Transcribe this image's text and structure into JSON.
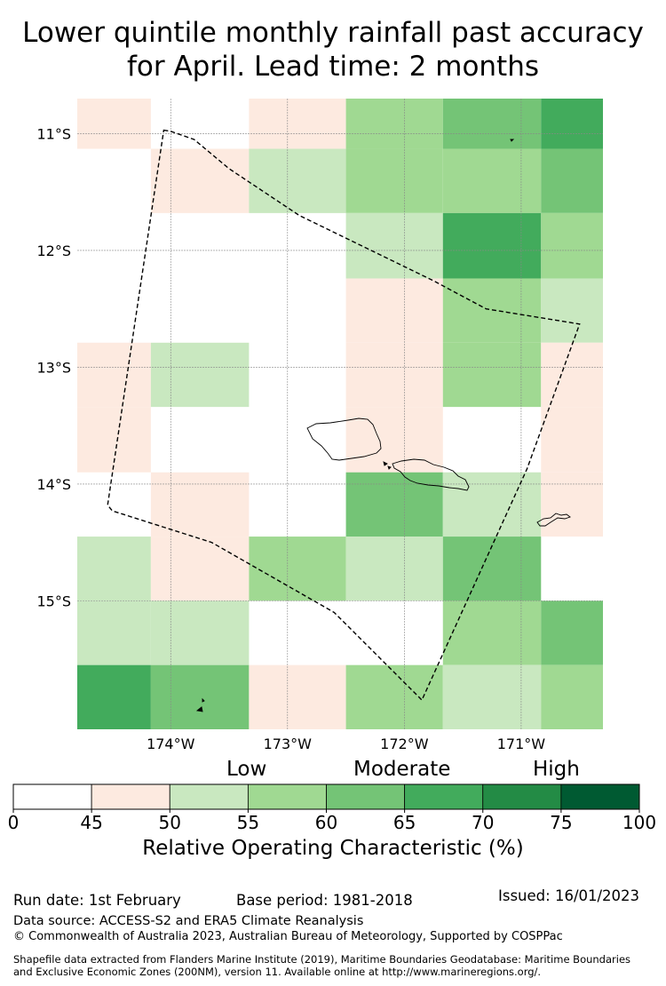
{
  "title": {
    "line1": "Lower quintile monthly rainfall past accuracy",
    "line2": "for April. Lead time: 2 months"
  },
  "map": {
    "lat_labels": [
      "11°S",
      "12°S",
      "13°S",
      "14°S",
      "15°S"
    ],
    "lon_labels": [
      "174°W",
      "173°W",
      "172°W",
      "171°W"
    ],
    "lon_range": [
      -174.8,
      -170.3
    ],
    "lat_range": [
      -16.1,
      -10.7
    ],
    "grid_cells": [
      {
        "lon": [
          -174.8,
          -174.17
        ],
        "lat": [
          -11.13,
          -10.7
        ],
        "class": 1
      },
      {
        "lon": [
          -173.33,
          -172.5
        ],
        "lat": [
          -11.13,
          -10.7
        ],
        "class": 1
      },
      {
        "lon": [
          -172.5,
          -171.67
        ],
        "lat": [
          -11.13,
          -10.7
        ],
        "class": 3
      },
      {
        "lon": [
          -171.67,
          -170.83
        ],
        "lat": [
          -11.13,
          -10.7
        ],
        "class": 4
      },
      {
        "lon": [
          -170.83,
          -170.3
        ],
        "lat": [
          -11.13,
          -10.7
        ],
        "class": 5
      },
      {
        "lon": [
          -174.17,
          -173.33
        ],
        "lat": [
          -11.68,
          -11.13
        ],
        "class": 1
      },
      {
        "lon": [
          -173.33,
          -172.5
        ],
        "lat": [
          -11.68,
          -11.13
        ],
        "class": 2
      },
      {
        "lon": [
          -172.5,
          -171.67
        ],
        "lat": [
          -11.68,
          -11.13
        ],
        "class": 3
      },
      {
        "lon": [
          -171.67,
          -170.83
        ],
        "lat": [
          -11.68,
          -11.13
        ],
        "class": 3
      },
      {
        "lon": [
          -170.83,
          -170.3
        ],
        "lat": [
          -11.68,
          -11.13
        ],
        "class": 4
      },
      {
        "lon": [
          -172.5,
          -171.67
        ],
        "lat": [
          -12.24,
          -11.68
        ],
        "class": 2
      },
      {
        "lon": [
          -171.67,
          -170.83
        ],
        "lat": [
          -12.24,
          -11.68
        ],
        "class": 5
      },
      {
        "lon": [
          -170.83,
          -170.3
        ],
        "lat": [
          -12.24,
          -11.68
        ],
        "class": 3
      },
      {
        "lon": [
          -172.5,
          -171.67
        ],
        "lat": [
          -12.79,
          -12.24
        ],
        "class": 1
      },
      {
        "lon": [
          -171.67,
          -170.83
        ],
        "lat": [
          -12.79,
          -12.24
        ],
        "class": 3
      },
      {
        "lon": [
          -170.83,
          -170.3
        ],
        "lat": [
          -12.79,
          -12.24
        ],
        "class": 2
      },
      {
        "lon": [
          -174.8,
          -174.17
        ],
        "lat": [
          -13.34,
          -12.79
        ],
        "class": 1
      },
      {
        "lon": [
          -174.17,
          -173.33
        ],
        "lat": [
          -13.34,
          -12.79
        ],
        "class": 2
      },
      {
        "lon": [
          -172.5,
          -171.67
        ],
        "lat": [
          -13.34,
          -12.79
        ],
        "class": 1
      },
      {
        "lon": [
          -171.67,
          -170.83
        ],
        "lat": [
          -13.34,
          -12.79
        ],
        "class": 3
      },
      {
        "lon": [
          -170.83,
          -170.3
        ],
        "lat": [
          -13.34,
          -12.79
        ],
        "class": 1
      },
      {
        "lon": [
          -174.8,
          -174.17
        ],
        "lat": [
          -13.9,
          -13.34
        ],
        "class": 1
      },
      {
        "lon": [
          -172.5,
          -171.67
        ],
        "lat": [
          -13.9,
          -13.34
        ],
        "class": 1
      },
      {
        "lon": [
          -170.83,
          -170.3
        ],
        "lat": [
          -13.9,
          -13.34
        ],
        "class": 1
      },
      {
        "lon": [
          -174.17,
          -173.33
        ],
        "lat": [
          -14.45,
          -13.9
        ],
        "class": 1
      },
      {
        "lon": [
          -172.5,
          -171.67
        ],
        "lat": [
          -14.45,
          -13.9
        ],
        "class": 4
      },
      {
        "lon": [
          -171.67,
          -170.83
        ],
        "lat": [
          -14.45,
          -13.9
        ],
        "class": 2
      },
      {
        "lon": [
          -170.83,
          -170.3
        ],
        "lat": [
          -14.45,
          -13.9
        ],
        "class": 1
      },
      {
        "lon": [
          -174.8,
          -174.17
        ],
        "lat": [
          -15.0,
          -14.45
        ],
        "class": 2
      },
      {
        "lon": [
          -174.17,
          -173.33
        ],
        "lat": [
          -15.0,
          -14.45
        ],
        "class": 1
      },
      {
        "lon": [
          -173.33,
          -172.5
        ],
        "lat": [
          -15.0,
          -14.45
        ],
        "class": 3
      },
      {
        "lon": [
          -172.5,
          -171.67
        ],
        "lat": [
          -15.0,
          -14.45
        ],
        "class": 2
      },
      {
        "lon": [
          -171.67,
          -170.83
        ],
        "lat": [
          -15.0,
          -14.45
        ],
        "class": 4
      },
      {
        "lon": [
          -174.8,
          -174.17
        ],
        "lat": [
          -15.55,
          -15.0
        ],
        "class": 2
      },
      {
        "lon": [
          -174.17,
          -173.33
        ],
        "lat": [
          -15.55,
          -15.0
        ],
        "class": 2
      },
      {
        "lon": [
          -171.67,
          -170.83
        ],
        "lat": [
          -15.55,
          -15.0
        ],
        "class": 3
      },
      {
        "lon": [
          -170.83,
          -170.3
        ],
        "lat": [
          -15.55,
          -15.0
        ],
        "class": 4
      },
      {
        "lon": [
          -174.8,
          -174.17
        ],
        "lat": [
          -16.1,
          -15.55
        ],
        "class": 5
      },
      {
        "lon": [
          -174.17,
          -173.33
        ],
        "lat": [
          -16.1,
          -15.55
        ],
        "class": 4
      },
      {
        "lon": [
          -173.33,
          -172.5
        ],
        "lat": [
          -16.1,
          -15.55
        ],
        "class": 1
      },
      {
        "lon": [
          -172.5,
          -171.67
        ],
        "lat": [
          -16.1,
          -15.55
        ],
        "class": 3
      },
      {
        "lon": [
          -171.67,
          -170.83
        ],
        "lat": [
          -16.1,
          -15.55
        ],
        "class": 2
      },
      {
        "lon": [
          -170.83,
          -170.3
        ],
        "lat": [
          -16.1,
          -15.55
        ],
        "class": 3
      }
    ],
    "eez_boundary": [
      [
        -174.06,
        -10.97
      ],
      [
        -174.0,
        -10.98
      ],
      [
        -173.8,
        -11.05
      ],
      [
        -173.5,
        -11.3
      ],
      [
        -172.9,
        -11.7
      ],
      [
        -171.75,
        -12.26
      ],
      [
        -171.3,
        -12.5
      ],
      [
        -170.5,
        -12.63
      ],
      [
        -170.95,
        -13.87
      ],
      [
        -171.85,
        -15.85
      ],
      [
        -172.6,
        -15.1
      ],
      [
        -173.65,
        -14.5
      ],
      [
        -174.5,
        -14.23
      ],
      [
        -174.54,
        -14.18
      ],
      [
        -174.06,
        -10.97
      ]
    ]
  },
  "legend": {
    "category_labels": [
      "Low",
      "Moderate",
      "High"
    ],
    "ticks": [
      "0",
      "45",
      "50",
      "55",
      "60",
      "65",
      "70",
      "75",
      "100"
    ],
    "colors": [
      "#ffffff",
      "#fdeae0",
      "#c9e8c0",
      "#a0d992",
      "#74c476",
      "#42ab5c",
      "#238b45",
      "#005a32"
    ],
    "axis_label": "Relative Operating Characteristic (%)"
  },
  "footer": {
    "run_date": "Run date: 1st February",
    "base_period": "Base period: 1981-2018",
    "issued": "Issued: 16/01/2023",
    "data_source": "Data source: ACCESS-S2 and ERA5 Climate Reanalysis",
    "copyright": "© Commonwealth of Australia 2023, Australian Bureau of Meteorology, Supported by COSPPac",
    "shapefile_line1": "Shapefile data extracted from Flanders Marine Institute (2019), Maritime Boundaries Geodatabase: Maritime Boundaries",
    "shapefile_line2": "and Exclusive Economic Zones (200NM), version 11. Available online at http://www.marineregions.org/."
  }
}
